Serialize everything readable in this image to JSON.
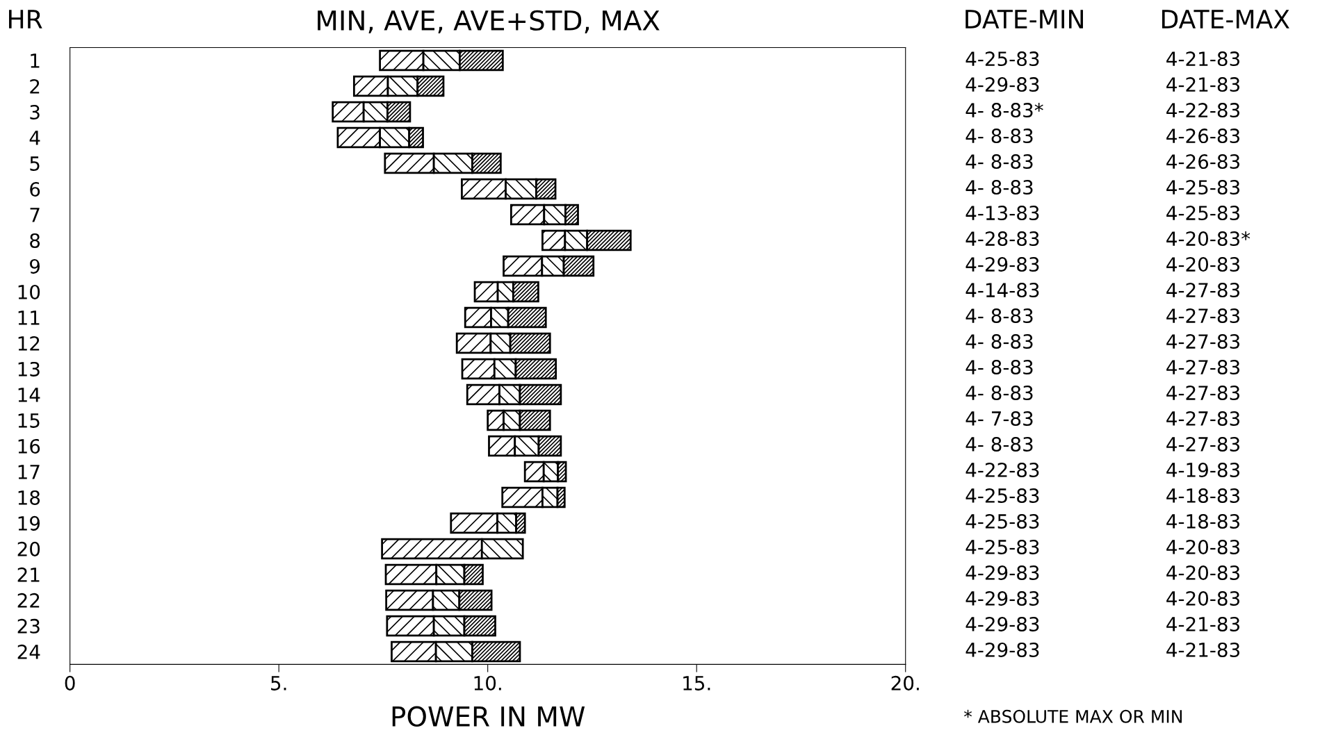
{
  "chart_data": {
    "type": "bar",
    "orientation": "horizontal",
    "title": "MIN, AVE, AVE+STD, MAX",
    "xlabel": "POWER IN MW",
    "ylabel": "HR",
    "categories": [
      "1",
      "2",
      "3",
      "4",
      "5",
      "6",
      "7",
      "8",
      "9",
      "10",
      "11",
      "12",
      "13",
      "14",
      "15",
      "16",
      "17",
      "18",
      "19",
      "20",
      "21",
      "22",
      "23",
      "24"
    ],
    "series": [
      {
        "color": "#000000",
        "base": [
          7.42,
          6.8,
          6.29,
          6.41,
          7.54,
          9.38,
          10.56,
          11.31,
          10.38,
          9.69,
          9.46,
          9.26,
          9.39,
          9.51,
          10.0,
          10.03,
          10.89,
          10.35,
          9.12,
          7.47,
          7.56,
          7.57,
          7.59,
          7.7
        ],
        "values": [
          1.04,
          0.81,
          0.74,
          1.01,
          1.17,
          1.05,
          0.79,
          0.54,
          0.92,
          0.55,
          0.62,
          0.81,
          0.77,
          0.77,
          0.38,
          0.62,
          0.45,
          0.96,
          1.11,
          2.39,
          1.21,
          1.12,
          1.12,
          1.06
        ]
      },
      {
        "color": "#000000",
        "base": [
          8.46,
          7.61,
          7.03,
          7.42,
          8.71,
          10.43,
          11.35,
          11.85,
          11.3,
          10.24,
          10.08,
          10.07,
          10.16,
          10.28,
          10.38,
          10.65,
          11.34,
          11.31,
          10.23,
          9.86,
          8.77,
          8.69,
          8.71,
          8.76
        ],
        "values": [
          0.87,
          0.71,
          0.57,
          0.7,
          0.92,
          0.73,
          0.51,
          0.53,
          0.52,
          0.37,
          0.41,
          0.47,
          0.51,
          0.49,
          0.39,
          0.57,
          0.34,
          0.36,
          0.45,
          0.98,
          0.67,
          0.63,
          0.73,
          0.87
        ]
      },
      {
        "color": "#000000",
        "base": [
          9.33,
          8.32,
          7.6,
          8.12,
          9.63,
          11.16,
          11.86,
          12.38,
          11.82,
          10.61,
          10.49,
          10.54,
          10.67,
          10.77,
          10.77,
          11.22,
          11.68,
          11.67,
          10.68,
          null,
          9.44,
          9.32,
          9.44,
          9.63
        ],
        "values": [
          1.03,
          0.62,
          0.54,
          0.33,
          0.68,
          0.46,
          0.3,
          1.04,
          0.71,
          0.6,
          0.9,
          0.95,
          0.96,
          0.98,
          0.72,
          0.53,
          0.19,
          0.17,
          0.21,
          null,
          0.44,
          0.77,
          0.74,
          1.14
        ]
      }
    ],
    "xlim": [
      0,
      20
    ],
    "xticks": [
      0,
      {
        "value": 5,
        "label": "5."
      },
      {
        "value": 10,
        "label": "10."
      },
      {
        "value": 15,
        "label": "15."
      },
      {
        "value": 20,
        "label": "20."
      }
    ],
    "annotations": [
      "DATE-MIN",
      "DATE-MAX",
      "4-25-83",
      "4-21-83",
      "4-29-83",
      "4-21-83",
      "4- 8-83*",
      "4-22-83",
      "4- 8-83",
      "4-26-83",
      "4- 8-83",
      "4-26-83",
      "4- 8-83",
      "4-25-83",
      "4-13-83",
      "4-25-83",
      "4-28-83",
      "4-20-83*",
      "4-29-83",
      "4-20-83",
      "4-14-83",
      "4-27-83",
      "4- 8-83",
      "4-27-83",
      "4- 8-83",
      "4-27-83",
      "4- 8-83",
      "4-27-83",
      "4- 8-83",
      "4-27-83",
      "4- 7-83",
      "4-27-83",
      "4- 8-83",
      "4-27-83",
      "4-22-83",
      "4-19-83",
      "4-25-83",
      "4-18-83",
      "4-25-83",
      "4-18-83",
      "4-25-83",
      "4-20-83",
      "4-29-83",
      "4-20-83",
      "4-29-83",
      "4-20-83",
      "4-29-83",
      "4-21-83",
      "4-29-83",
      "4-21-83",
      "* ABSOLUTE MAX OR MIN"
    ]
  }
}
